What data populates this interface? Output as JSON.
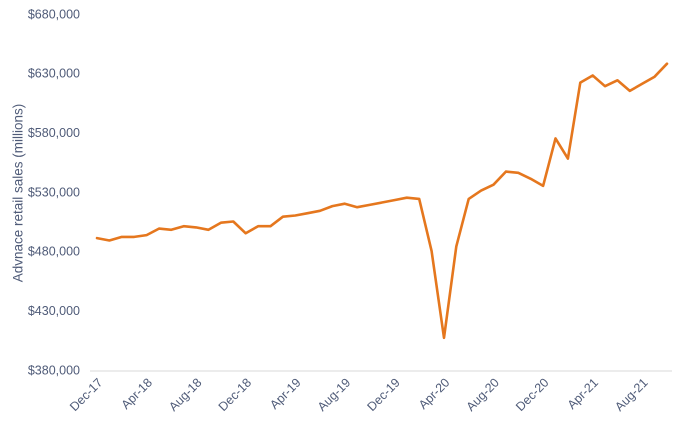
{
  "chart_data": {
    "type": "line",
    "y_label": "Advnace retail sales (millions)",
    "categories": [
      "Dec-17",
      null,
      null,
      null,
      "Apr-18",
      null,
      null,
      null,
      "Aug-18",
      null,
      null,
      null,
      "Dec-18",
      null,
      null,
      null,
      "Apr-19",
      null,
      null,
      null,
      "Aug-19",
      null,
      null,
      null,
      "Dec-19",
      null,
      null,
      null,
      "Apr-20",
      null,
      null,
      null,
      "Aug-20",
      null,
      null,
      null,
      "Dec-20",
      null,
      null,
      null,
      "Apr-21",
      null,
      null,
      null,
      "Aug-21",
      null,
      null
    ],
    "series": [
      {
        "name": "Advance retail sales",
        "color": "#e5771e",
        "values": [
          492000,
          490000,
          493000,
          493000,
          494500,
          500000,
          499000,
          502000,
          501000,
          499000,
          505000,
          506000,
          496000,
          502000,
          502000,
          510000,
          511000,
          513000,
          515000,
          519000,
          521000,
          518000,
          520000,
          522000,
          524000,
          526000,
          525000,
          481000,
          408000,
          485000,
          525000,
          532000,
          537000,
          548000,
          547000,
          542000,
          536000,
          576000,
          559000,
          623000,
          629000,
          620000,
          625000,
          616000,
          622000,
          628000,
          639000
        ]
      }
    ],
    "ylim": [
      380000,
      680000
    ],
    "yticks": [
      {
        "value": 380000,
        "label": "$380,000"
      },
      {
        "value": 430000,
        "label": "$430,000"
      },
      {
        "value": 480000,
        "label": "$480,000"
      },
      {
        "value": 530000,
        "label": "$530,000"
      },
      {
        "value": 580000,
        "label": "$580,000"
      },
      {
        "value": 630000,
        "label": "$630,000"
      },
      {
        "value": 680000,
        "label": "$680,000"
      }
    ],
    "grid": false
  }
}
